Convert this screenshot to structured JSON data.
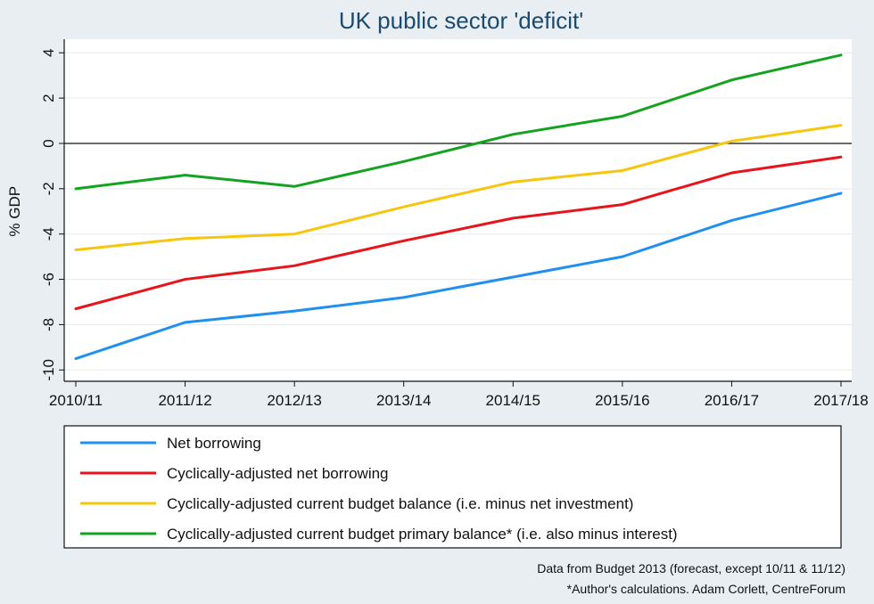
{
  "chart_data": {
    "type": "line",
    "title": "UK public sector 'deficit'",
    "xlabel": "",
    "ylabel": "% GDP",
    "categories": [
      "2010/11",
      "2011/12",
      "2012/13",
      "2013/14",
      "2014/15",
      "2015/16",
      "2016/17",
      "2017/18"
    ],
    "yticks": [
      4,
      2,
      0,
      -2,
      -4,
      -6,
      -8,
      -10
    ],
    "ylim": [
      -10.5,
      4.6
    ],
    "grid": true,
    "zero_line": true,
    "legend_position": "bottom",
    "series": [
      {
        "name": "Net borrowing",
        "color": "#1f8ff0",
        "values": [
          -9.5,
          -7.9,
          -7.4,
          -6.8,
          -5.9,
          -5.0,
          -3.4,
          -2.2
        ]
      },
      {
        "name": "Cyclically-adjusted net borrowing",
        "color": "#e8141c",
        "values": [
          -7.3,
          -6.0,
          -5.4,
          -4.3,
          -3.3,
          -2.7,
          -1.3,
          -0.6
        ]
      },
      {
        "name": "Cyclically-adjusted current budget balance (i.e. minus net investment)",
        "color": "#f7c60c",
        "values": [
          -4.7,
          -4.2,
          -4.0,
          -2.8,
          -1.7,
          -1.2,
          0.1,
          0.8
        ]
      },
      {
        "name": "Cyclically-adjusted current budget primary balance* (i.e. also minus interest)",
        "color": "#14a320",
        "values": [
          -2.0,
          -1.4,
          -1.9,
          -0.8,
          0.4,
          1.2,
          2.8,
          3.9
        ]
      }
    ],
    "notes": [
      "Data from Budget 2013 (forecast, except 10/11 & 11/12)",
      "*Author's calculations. Adam Corlett, CentreForum"
    ]
  }
}
